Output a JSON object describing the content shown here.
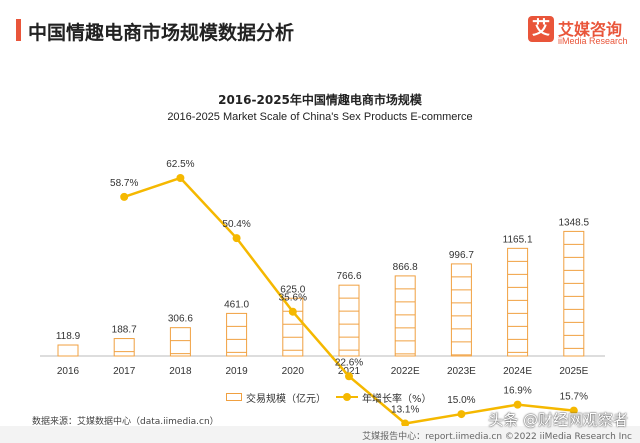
{
  "header": {
    "title": "中国情趣电商市场规模数据分析"
  },
  "logo": {
    "mark": "艾",
    "name_cn": "艾媒咨询",
    "name_en": "iiMedia Research"
  },
  "chart_data": {
    "type": "bar",
    "title": "2016-2025年中国情趣电商市场规模",
    "subtitle": "2016-2025 Market Scale of China's Sex Products E-commerce",
    "categories": [
      "2016",
      "2017",
      "2018",
      "2019",
      "2020",
      "2021",
      "2022E",
      "2023E",
      "2024E",
      "2025E"
    ],
    "series": [
      {
        "name": "交易规模（亿元）",
        "type": "bar",
        "values": [
          118.9,
          188.7,
          306.6,
          461.0,
          625.0,
          766.6,
          866.8,
          996.7,
          1165.1,
          1348.5
        ],
        "labels": [
          "118.9",
          "188.7",
          "306.6",
          "461.0",
          "625.0",
          "766.6",
          "866.8",
          "996.7",
          "1165.1",
          "1348.5"
        ]
      },
      {
        "name": "年增长率（%）",
        "type": "line",
        "values": [
          null,
          58.7,
          62.5,
          50.4,
          35.6,
          22.6,
          13.1,
          15.0,
          16.9,
          15.7
        ],
        "labels": [
          "",
          "58.7%",
          "62.5%",
          "50.4%",
          "35.6%",
          "22.6%",
          "13.1%",
          "15.0%",
          "16.9%",
          "15.7%"
        ]
      }
    ],
    "grid": false,
    "legend_position": "bottom"
  },
  "colors": {
    "accent": "#e9553a",
    "bar": "#f0a040",
    "line": "#f5b800"
  },
  "source": "数据来源：艾媒数据中心（data.iimedia.cn）",
  "footer": "艾媒报告中心：report.iimedia.cn ©2022  iiMedia Research Inc",
  "watermark": "头条 @财经网观察者"
}
